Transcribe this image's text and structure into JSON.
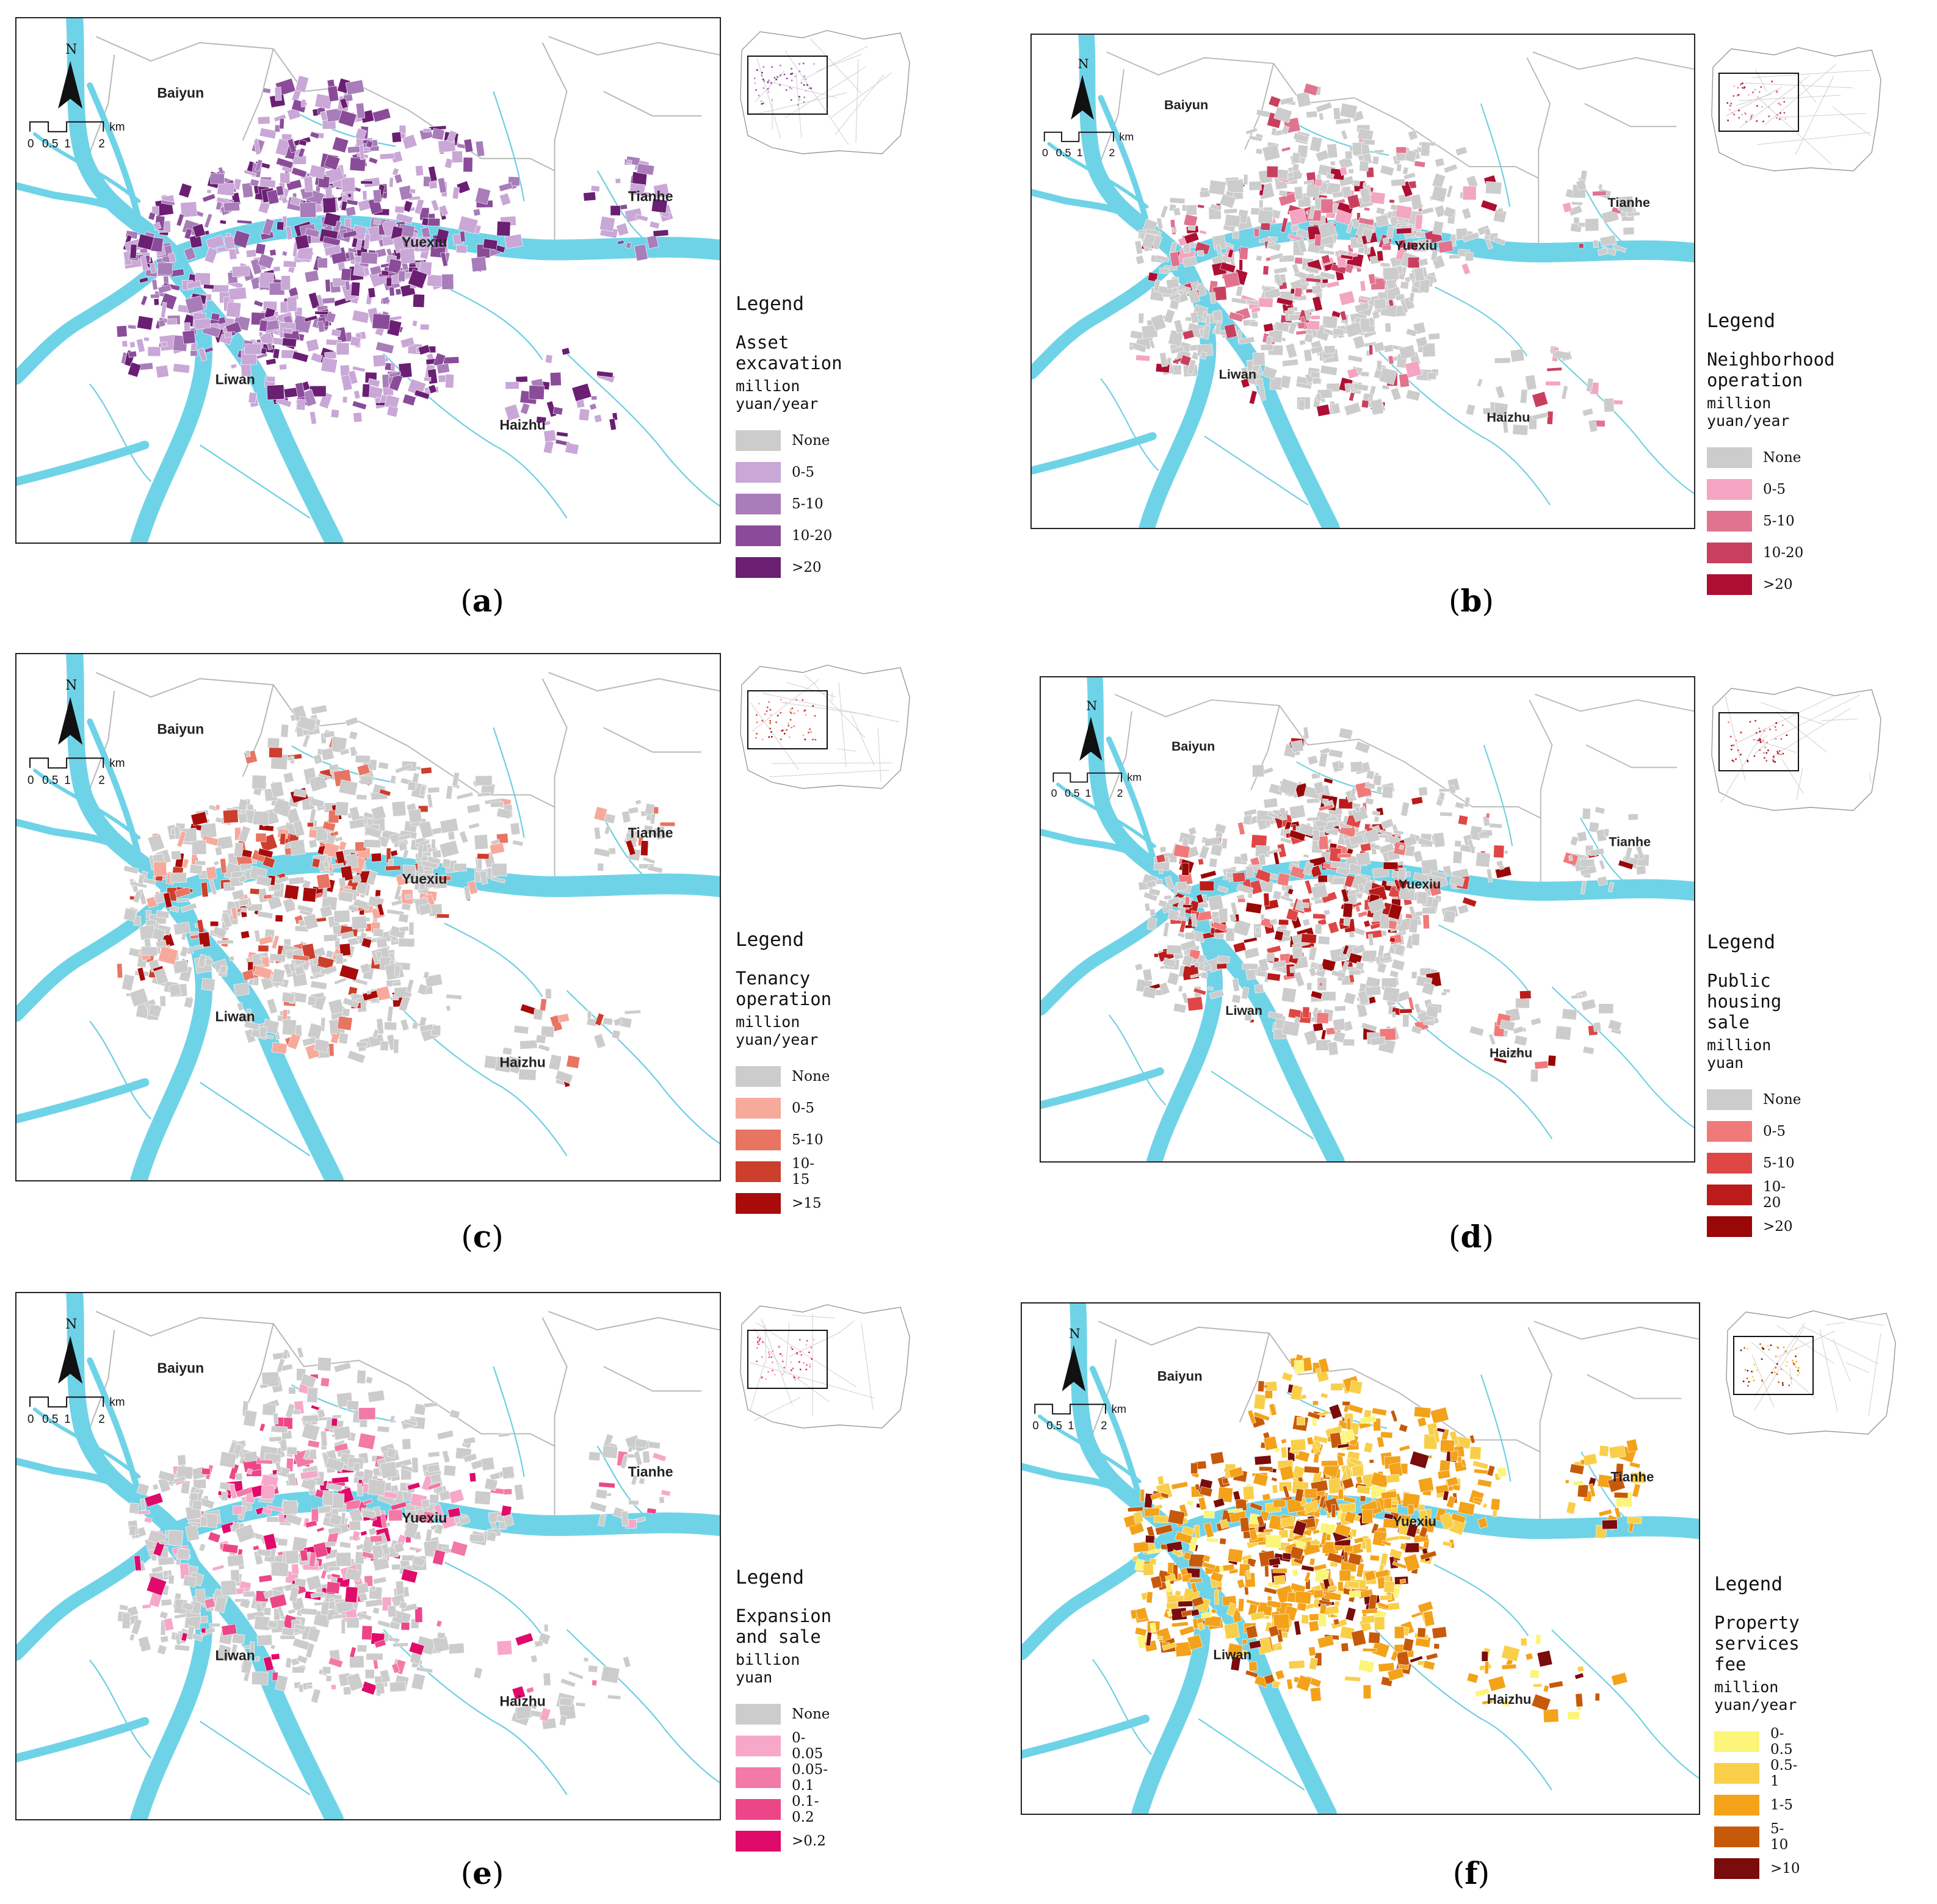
{
  "districts": [
    "Baiyun",
    "Yuexiu",
    "Tianhe",
    "Liwan",
    "Haizhu"
  ],
  "north_label": "N",
  "scale_bar": {
    "ticks": [
      "0",
      "0.5",
      "1",
      "2"
    ],
    "unit": "km"
  },
  "panels": [
    {
      "letter": "a",
      "legend_title": "Legend",
      "indicator": "Asset excavation",
      "unit": "million yuan/year",
      "classes": [
        {
          "label": "None",
          "color": "#cccccc"
        },
        {
          "label": "0-5",
          "color": "#c9a7d6"
        },
        {
          "label": "5-10",
          "color": "#a87db9"
        },
        {
          "label": "10-20",
          "color": "#8a4c99"
        },
        {
          "label": ">20",
          "color": "#6a1f73"
        }
      ]
    },
    {
      "letter": "b",
      "legend_title": "Legend",
      "indicator": "Neighborhood operation",
      "unit": "million yuan/year",
      "classes": [
        {
          "label": "None",
          "color": "#cccccc"
        },
        {
          "label": "0-5",
          "color": "#f3a5c1"
        },
        {
          "label": "5-10",
          "color": "#e0748f"
        },
        {
          "label": "10-20",
          "color": "#c9405f"
        },
        {
          "label": ">20",
          "color": "#ad0f33"
        }
      ]
    },
    {
      "letter": "c",
      "legend_title": "Legend",
      "indicator": "Tenancy operation",
      "unit": "million yuan/year",
      "classes": [
        {
          "label": "None",
          "color": "#cccccc"
        },
        {
          "label": "0-5",
          "color": "#f7a99b"
        },
        {
          "label": "5-10",
          "color": "#e87462"
        },
        {
          "label": "10-15",
          "color": "#cc3f2c"
        },
        {
          "label": ">15",
          "color": "#a90b0b"
        }
      ]
    },
    {
      "letter": "d",
      "legend_title": "Legend",
      "indicator": "Public housing sale",
      "unit": "million yuan",
      "classes": [
        {
          "label": "None",
          "color": "#cccccc"
        },
        {
          "label": "0-5",
          "color": "#f07a7a"
        },
        {
          "label": "5-10",
          "color": "#df4646"
        },
        {
          "label": "10-20",
          "color": "#bb1b1b"
        },
        {
          "label": ">20",
          "color": "#990707"
        }
      ]
    },
    {
      "letter": "e",
      "legend_title": "Legend",
      "indicator": "Expansion and sale",
      "unit": "billion yuan",
      "classes": [
        {
          "label": "None",
          "color": "#cccccc"
        },
        {
          "label": "0-0.05",
          "color": "#f7a8c8"
        },
        {
          "label": "0.05-0.1",
          "color": "#f27aa6"
        },
        {
          "label": "0.1-0.2",
          "color": "#ec4688"
        },
        {
          "label": ">0.2",
          "color": "#e00a6a"
        }
      ]
    },
    {
      "letter": "f",
      "legend_title": "Legend",
      "indicator": "Property services fee",
      "unit": "million yuan/year",
      "classes": [
        {
          "label": "0-0.5",
          "color": "#fbf57a"
        },
        {
          "label": "0.5-1",
          "color": "#f9cf4a"
        },
        {
          "label": "1-5",
          "color": "#f3a21a"
        },
        {
          "label": "5-10",
          "color": "#c75a0a"
        },
        {
          "label": ">10",
          "color": "#7a0c0c"
        }
      ]
    }
  ]
}
